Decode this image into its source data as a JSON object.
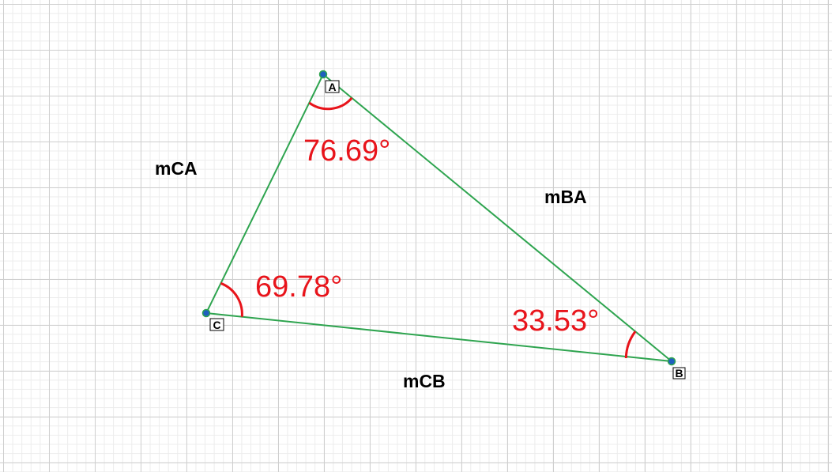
{
  "colors": {
    "edge": "#2ea44f",
    "angle": "#e8141b",
    "point_fill": "#1f5fbf",
    "point_stroke": "#2ea44f"
  },
  "vertices": {
    "A": "A",
    "B": "B",
    "C": "C"
  },
  "sides": {
    "ca": "mCA",
    "ba": "mBA",
    "cb": "mCB"
  },
  "angles": {
    "a": "76.69°",
    "c": "69.78°",
    "b": "33.53°"
  }
}
